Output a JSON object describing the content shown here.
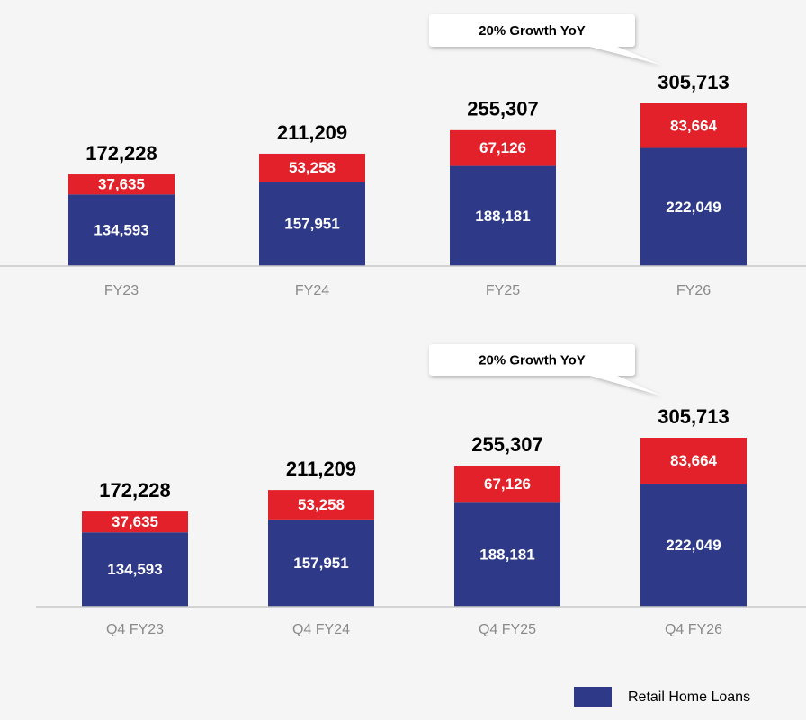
{
  "chart_data": [
    {
      "type": "bar",
      "stacked": true,
      "categories": [
        "FY23",
        "FY24",
        "FY25",
        "FY26"
      ],
      "series": [
        {
          "name": "Retail Home Loans",
          "color": "#2e3a87",
          "values": [
            134593,
            157951,
            188181,
            222049
          ],
          "value_labels": [
            "134,593",
            "157,951",
            "188,181",
            "222,049"
          ]
        },
        {
          "color": "#e3212a",
          "values": [
            37635,
            53258,
            67126,
            83664
          ],
          "value_labels": [
            "37,635",
            "53,258",
            "67,126",
            "83,664"
          ]
        }
      ],
      "totals": [
        172228,
        211209,
        255307,
        305713
      ],
      "total_labels": [
        "172,228",
        "211,209",
        "255,307",
        "305,713"
      ],
      "annotation": "20% Growth YoY"
    },
    {
      "type": "bar",
      "stacked": true,
      "categories": [
        "Q4 FY23",
        "Q4 FY24",
        "Q4 FY25",
        "Q4 FY26"
      ],
      "series": [
        {
          "color": "#2e3a87",
          "values": [
            134593,
            157951,
            188181,
            222049
          ],
          "value_labels": [
            "134,593",
            "157,951",
            "188,181",
            "222,049"
          ]
        },
        {
          "color": "#e3212a",
          "values": [
            37635,
            53258,
            67126,
            83664
          ],
          "value_labels": [
            "37,635",
            "53,258",
            "67,126",
            "83,664"
          ]
        }
      ],
      "totals": [
        172228,
        211209,
        255307,
        305713
      ],
      "total_labels": [
        "172,228",
        "211,209",
        "255,307",
        "305,713"
      ],
      "annotation": "20% Growth YoY"
    }
  ]
}
